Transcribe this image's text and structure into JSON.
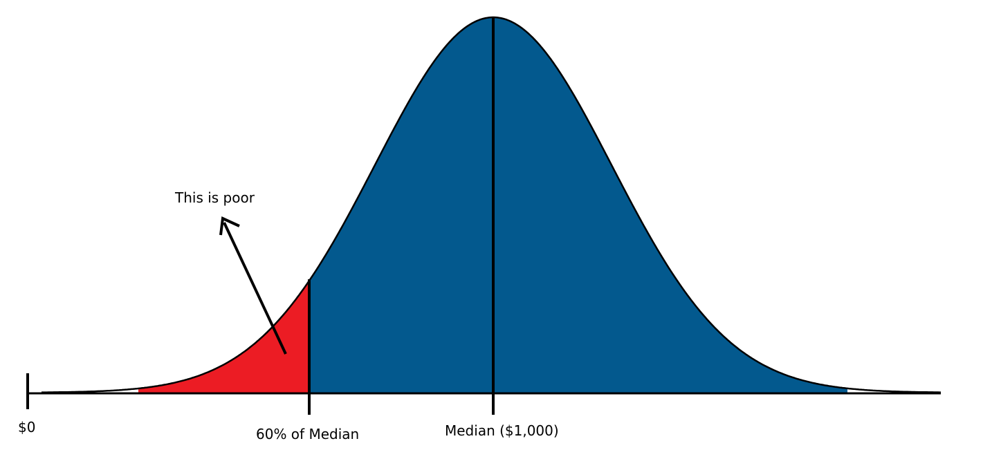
{
  "annotation": "This is poor",
  "axis_labels": {
    "zero": "$0",
    "threshold": "60% of Median",
    "median": "Median ($1,000)"
  }
}
